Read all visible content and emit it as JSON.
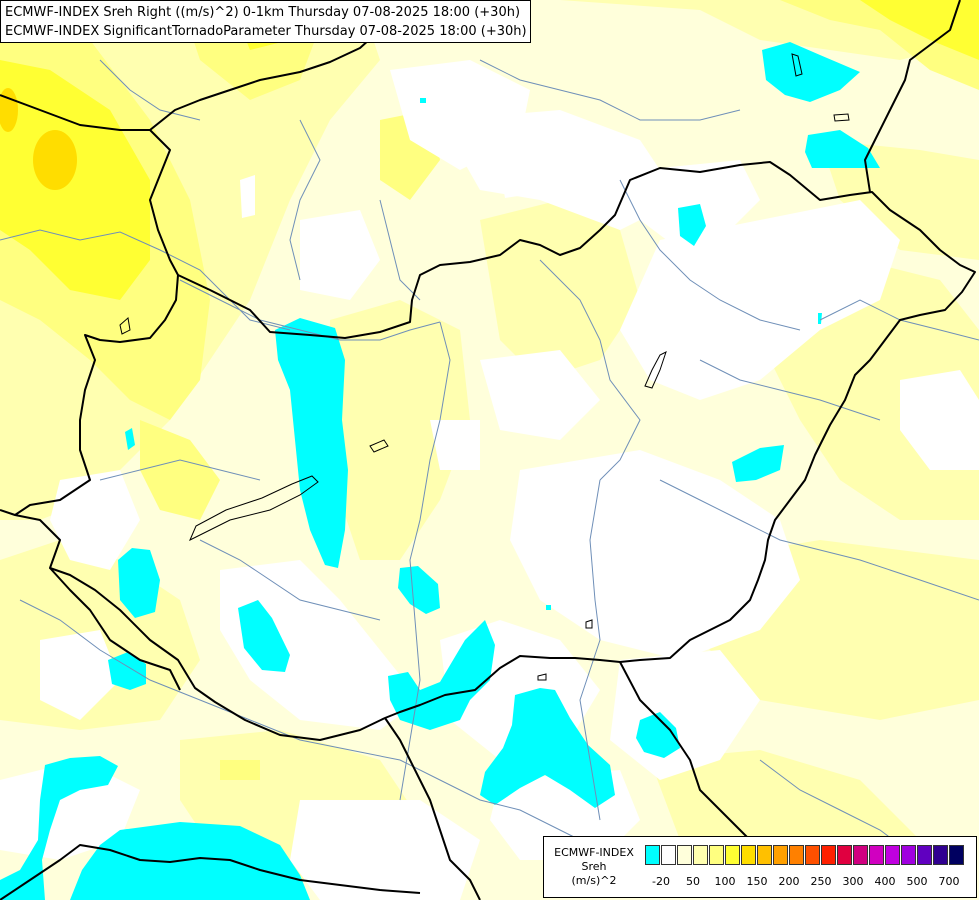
{
  "header": {
    "line1": "ECMWF-INDEX Sreh Right ((m/s)^2) 0-1km Thursday 07-08-2025 18:00 (+30h)",
    "line2": "ECMWF-INDEX SignificantTornadoParameter Thursday 07-08-2025 18:00 (+30h)"
  },
  "legend": {
    "line1": "ECMWF-INDEX",
    "line2": "Sreh",
    "line3": "(m/s)^2",
    "colors": [
      "#00ffff",
      "#ffffff",
      "#ffffdb",
      "#ffffb0",
      "#ffff80",
      "#ffff33",
      "#ffdd00",
      "#ffc000",
      "#ffa000",
      "#ff8000",
      "#ff5000",
      "#ff2000",
      "#e00040",
      "#d00080",
      "#d000c0",
      "#c000e0",
      "#a000e0",
      "#6000c0",
      "#300090",
      "#000060"
    ],
    "ticks": [
      "-20",
      "50",
      "100",
      "150",
      "200",
      "250",
      "300",
      "400",
      "500",
      "700"
    ]
  },
  "palette": {
    "cyan": "#00ffff",
    "pale": "#ffffdb",
    "light": "#ffffb0",
    "mid": "#ffff80",
    "bright": "#ffff33",
    "deep": "#ffdd00",
    "border": "#000000",
    "river": "#6f8fb8"
  }
}
